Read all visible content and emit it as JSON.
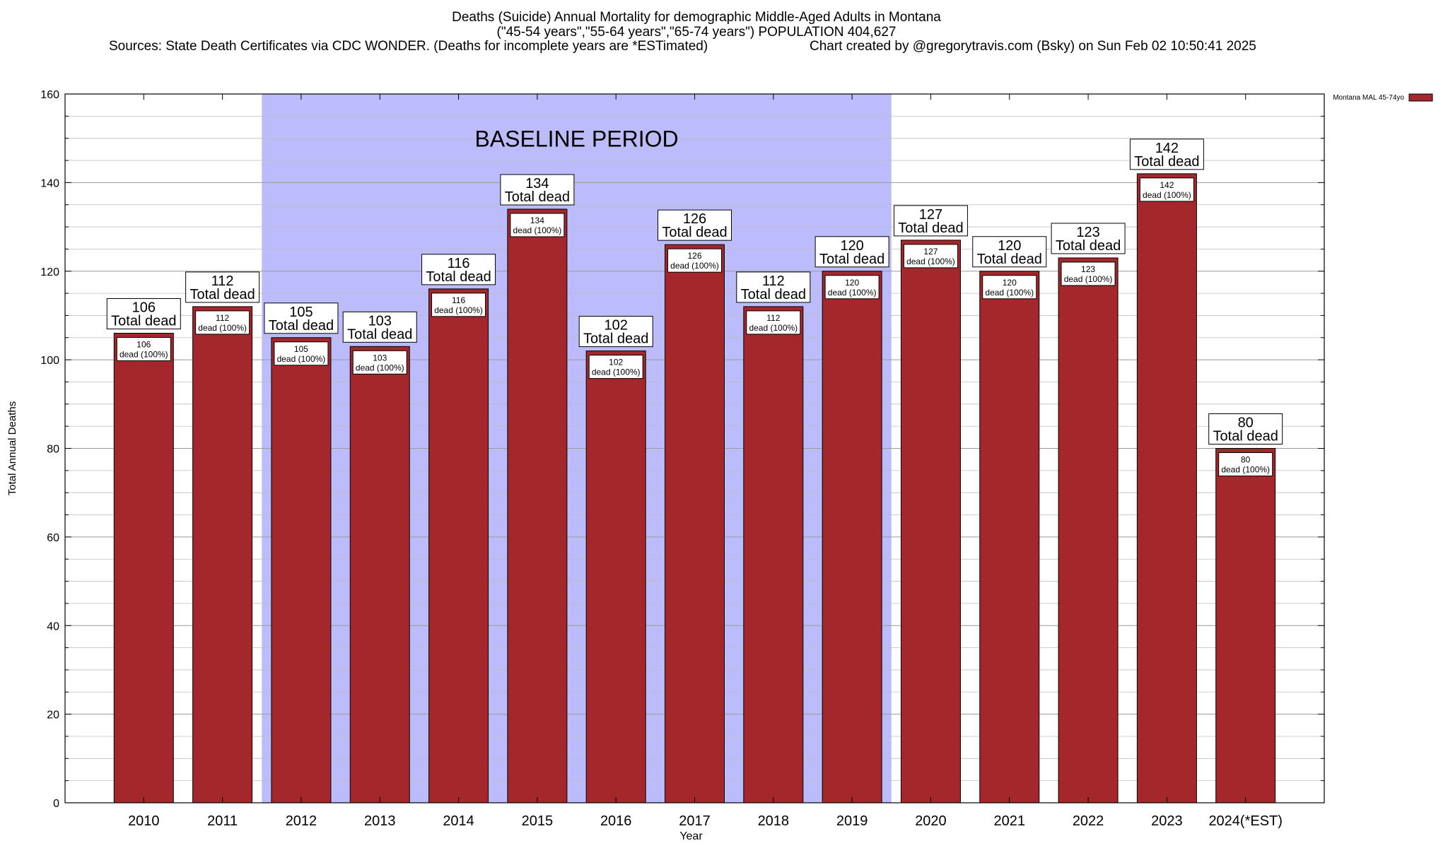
{
  "header": {
    "title": "Deaths (Suicide) Annual Mortality for demographic Middle-Aged Adults in Montana",
    "subtitle": "(\"45-54 years\",\"55-64 years\",\"65-74 years\") POPULATION 404,627",
    "sources": "Sources: State Death Certificates via CDC WONDER. (Deaths for incomplete years are *ESTimated)",
    "credit": "Chart created by @gregorytravis.com (Bsky) on Sun Feb 02 10:50:41 2025"
  },
  "chart_data": {
    "type": "bar",
    "xlabel": "Year",
    "ylabel": "Total Annual Deaths",
    "ylim": [
      0,
      160
    ],
    "yticks": [
      0,
      20,
      40,
      60,
      80,
      100,
      120,
      140,
      160
    ],
    "grid": true,
    "legend_position": "top-right",
    "categories": [
      "2010",
      "2011",
      "2012",
      "2013",
      "2014",
      "2015",
      "2016",
      "2017",
      "2018",
      "2019",
      "2020",
      "2021",
      "2022",
      "2023",
      "2024(*EST)"
    ],
    "series": [
      {
        "name": "Montana MAL 45-74yo",
        "color": "#a4282b",
        "values": [
          106,
          112,
          105,
          103,
          116,
          134,
          102,
          126,
          112,
          120,
          127,
          120,
          123,
          142,
          80
        ]
      }
    ],
    "total_label_suffix": "Total dead",
    "inner_label_suffix": "dead (100%)",
    "annotation": {
      "text": "BASELINE PERIOD",
      "from": "2012",
      "to": "2019",
      "color": "#bcbcfc"
    }
  }
}
